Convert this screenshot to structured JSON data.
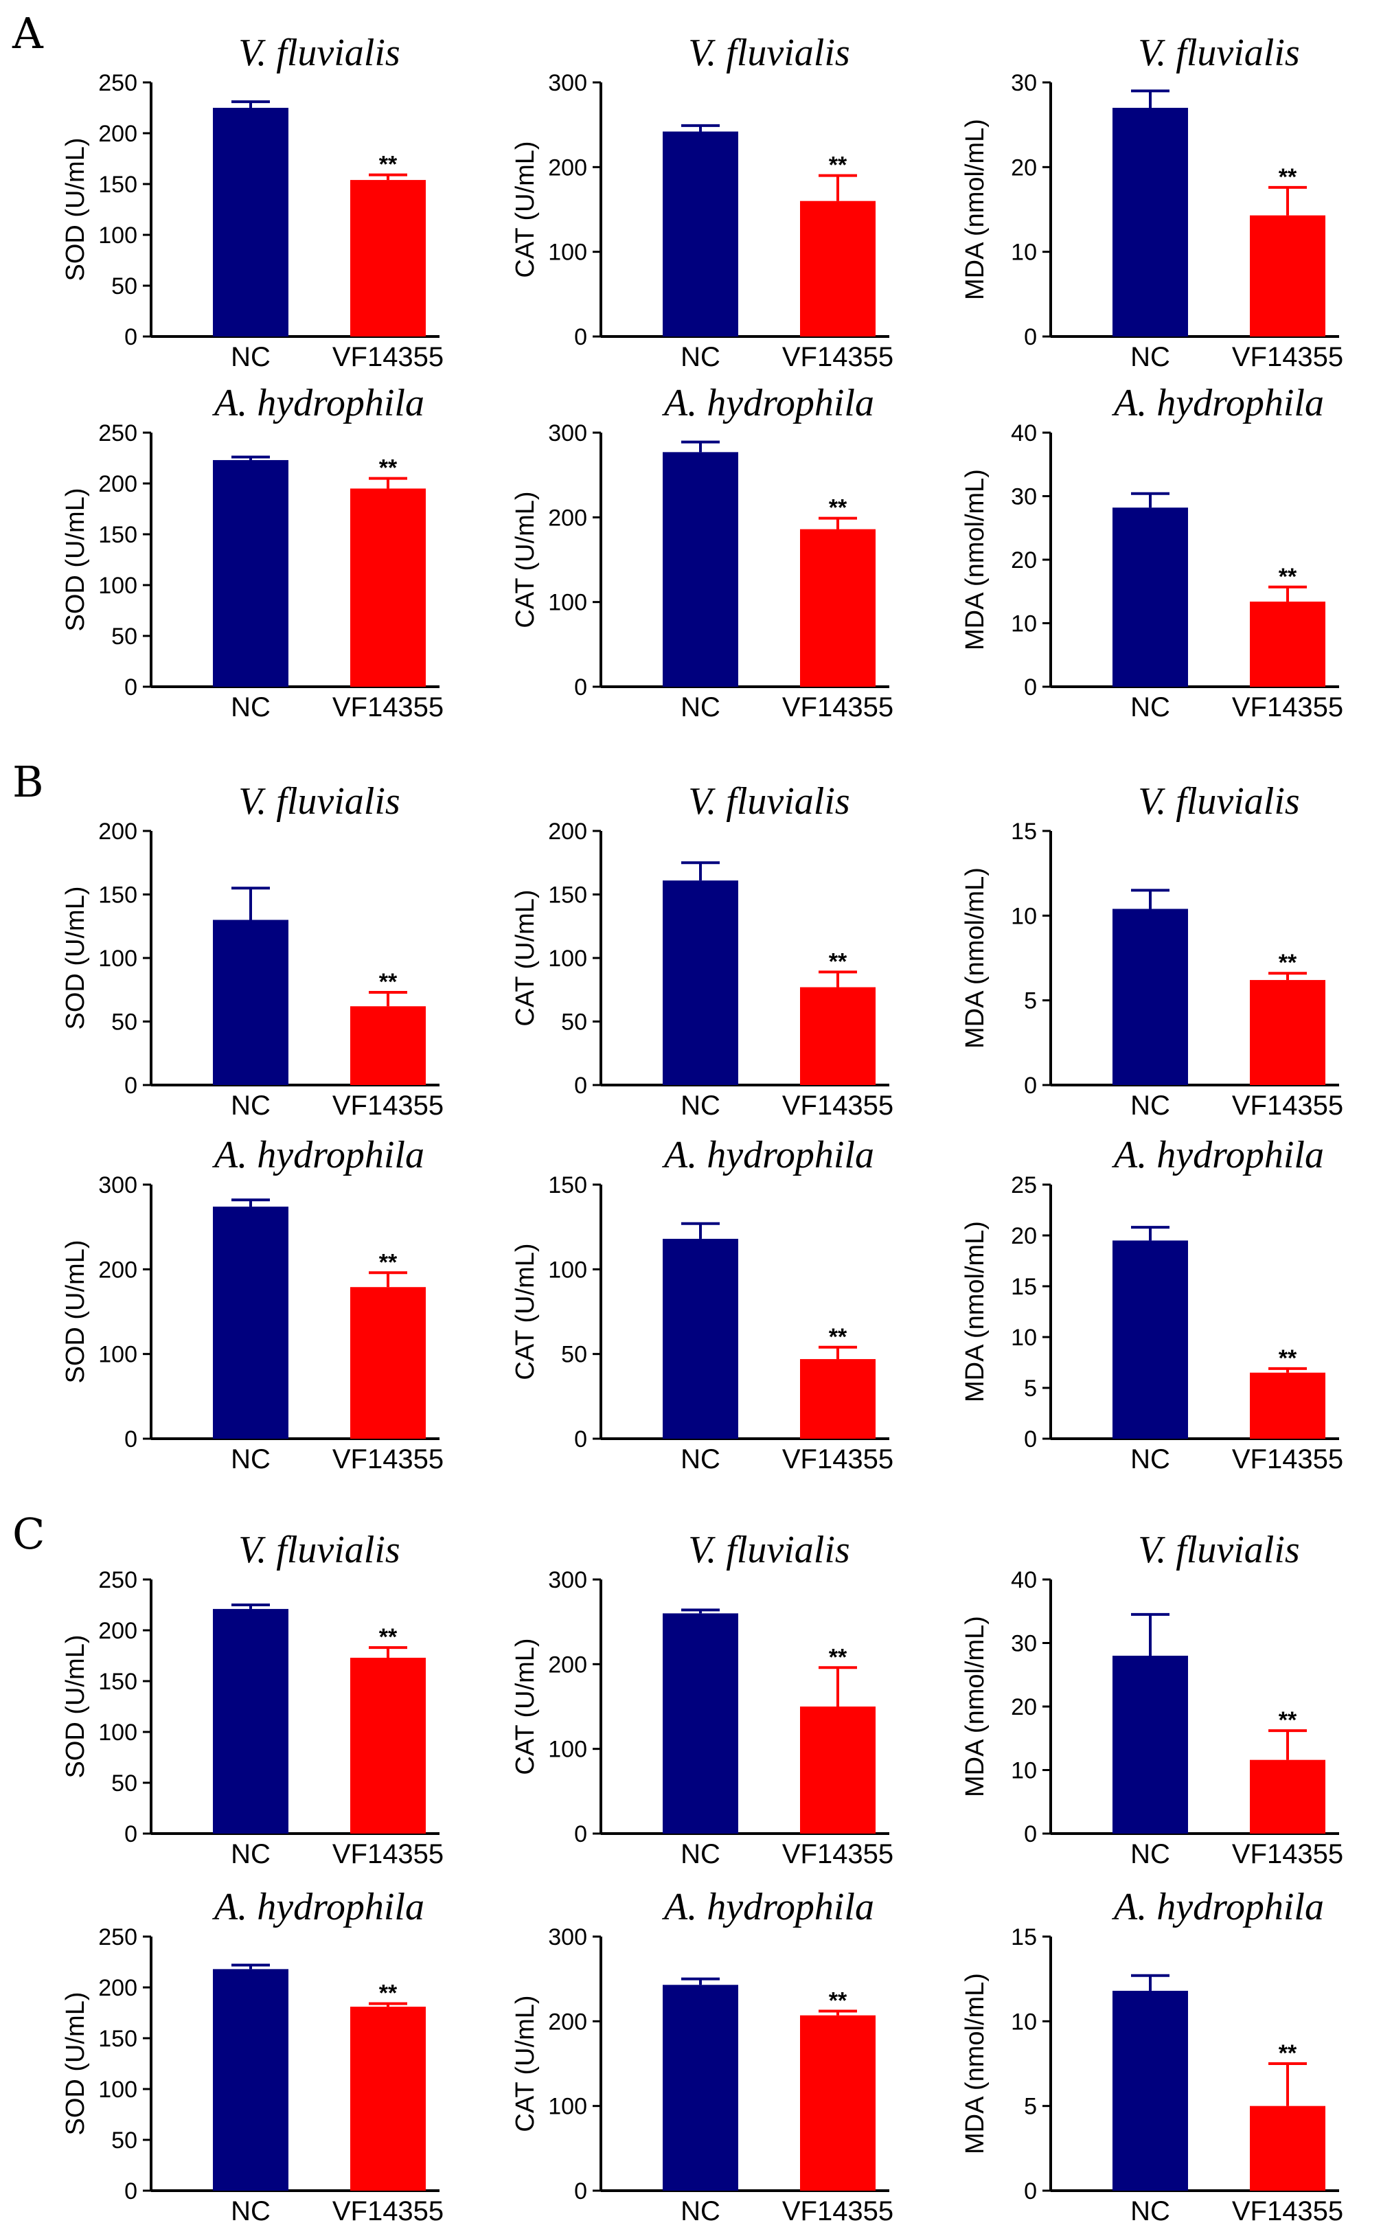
{
  "panel_letters": [
    "A",
    "B",
    "C"
  ],
  "colors": {
    "nc": "#00007E",
    "vf": "#FF0000",
    "axis": "#000000"
  },
  "chart_data": [
    {
      "type": "bar",
      "panel": "A",
      "title": "V. fluvialis",
      "ylabel": "SOD (U/mL)",
      "categories": [
        "NC",
        "VF14355"
      ],
      "values": [
        225,
        154
      ],
      "errors": [
        6,
        5
      ],
      "significance": [
        "",
        "**"
      ],
      "ylim": [
        0,
        250
      ],
      "yticks": [
        0,
        50,
        100,
        150,
        200,
        250
      ]
    },
    {
      "type": "bar",
      "panel": "A",
      "title": "V. fluvialis",
      "ylabel": "CAT (U/mL)",
      "categories": [
        "NC",
        "VF14355"
      ],
      "values": [
        242,
        160
      ],
      "errors": [
        7,
        30
      ],
      "significance": [
        "",
        "**"
      ],
      "ylim": [
        0,
        300
      ],
      "yticks": [
        0,
        100,
        200,
        300
      ]
    },
    {
      "type": "bar",
      "panel": "A",
      "title": "V. fluvialis",
      "ylabel": "MDA (nmol/mL)",
      "categories": [
        "NC",
        "VF14355"
      ],
      "values": [
        27,
        14.3
      ],
      "errors": [
        2,
        3.3
      ],
      "significance": [
        "",
        "**"
      ],
      "ylim": [
        0,
        30
      ],
      "yticks": [
        0,
        10,
        20,
        30
      ]
    },
    {
      "type": "bar",
      "panel": "A",
      "title": "A. hydrophila",
      "ylabel": "SOD (U/mL)",
      "categories": [
        "NC",
        "VF14355"
      ],
      "values": [
        223,
        195
      ],
      "errors": [
        3,
        10
      ],
      "significance": [
        "",
        "**"
      ],
      "ylim": [
        0,
        250
      ],
      "yticks": [
        0,
        50,
        100,
        150,
        200,
        250
      ]
    },
    {
      "type": "bar",
      "panel": "A",
      "title": "A. hydrophila",
      "ylabel": "CAT (U/mL)",
      "categories": [
        "NC",
        "VF14355"
      ],
      "values": [
        277,
        186
      ],
      "errors": [
        12,
        13
      ],
      "significance": [
        "",
        "**"
      ],
      "ylim": [
        0,
        300
      ],
      "yticks": [
        0,
        100,
        200,
        300
      ]
    },
    {
      "type": "bar",
      "panel": "A",
      "title": "A. hydrophila",
      "ylabel": "MDA (nmol/mL)",
      "categories": [
        "NC",
        "VF14355"
      ],
      "values": [
        28.2,
        13.4
      ],
      "errors": [
        2.2,
        2.3
      ],
      "significance": [
        "",
        "**"
      ],
      "ylim": [
        0,
        40
      ],
      "yticks": [
        0,
        10,
        20,
        30,
        40
      ]
    },
    {
      "type": "bar",
      "panel": "B",
      "title": "V. fluvialis",
      "ylabel": "SOD (U/mL)",
      "categories": [
        "NC",
        "VF14355"
      ],
      "values": [
        130,
        62
      ],
      "errors": [
        25,
        11
      ],
      "significance": [
        "",
        "**"
      ],
      "ylim": [
        0,
        200
      ],
      "yticks": [
        0,
        50,
        100,
        150,
        200
      ]
    },
    {
      "type": "bar",
      "panel": "B",
      "title": "V. fluvialis",
      "ylabel": "CAT (U/mL)",
      "categories": [
        "NC",
        "VF14355"
      ],
      "values": [
        161,
        77
      ],
      "errors": [
        14,
        12
      ],
      "significance": [
        "",
        "**"
      ],
      "ylim": [
        0,
        200
      ],
      "yticks": [
        0,
        50,
        100,
        150,
        200
      ]
    },
    {
      "type": "bar",
      "panel": "B",
      "title": "V. fluvialis",
      "ylabel": "MDA (nmol/mL)",
      "categories": [
        "NC",
        "VF14355"
      ],
      "values": [
        10.4,
        6.2
      ],
      "errors": [
        1.1,
        0.4
      ],
      "significance": [
        "",
        "**"
      ],
      "ylim": [
        0,
        15
      ],
      "yticks": [
        0,
        5,
        10,
        15
      ]
    },
    {
      "type": "bar",
      "panel": "B",
      "title": "A. hydrophila",
      "ylabel": "SOD (U/mL)",
      "categories": [
        "NC",
        "VF14355"
      ],
      "values": [
        274,
        179
      ],
      "errors": [
        8,
        17
      ],
      "significance": [
        "",
        "**"
      ],
      "ylim": [
        0,
        300
      ],
      "yticks": [
        0,
        100,
        200,
        300
      ]
    },
    {
      "type": "bar",
      "panel": "B",
      "title": "A. hydrophila",
      "ylabel": "CAT (U/mL)",
      "categories": [
        "NC",
        "VF14355"
      ],
      "values": [
        118,
        47
      ],
      "errors": [
        9,
        7
      ],
      "significance": [
        "",
        "**"
      ],
      "ylim": [
        0,
        150
      ],
      "yticks": [
        0,
        50,
        100,
        150
      ]
    },
    {
      "type": "bar",
      "panel": "B",
      "title": "A. hydrophila",
      "ylabel": "MDA (nmol/mL)",
      "categories": [
        "NC",
        "VF14355"
      ],
      "values": [
        19.5,
        6.5
      ],
      "errors": [
        1.3,
        0.4
      ],
      "significance": [
        "",
        "**"
      ],
      "ylim": [
        0,
        25
      ],
      "yticks": [
        0,
        5,
        10,
        15,
        20,
        25
      ]
    },
    {
      "type": "bar",
      "panel": "C",
      "title": "V. fluvialis",
      "ylabel": "SOD (U/mL)",
      "categories": [
        "NC",
        "VF14355"
      ],
      "values": [
        221,
        173
      ],
      "errors": [
        4,
        10
      ],
      "significance": [
        "",
        "**"
      ],
      "ylim": [
        0,
        250
      ],
      "yticks": [
        0,
        50,
        100,
        150,
        200,
        250
      ]
    },
    {
      "type": "bar",
      "panel": "C",
      "title": "V. fluvialis",
      "ylabel": "CAT (U/mL)",
      "categories": [
        "NC",
        "VF14355"
      ],
      "values": [
        260,
        150
      ],
      "errors": [
        4,
        46
      ],
      "significance": [
        "",
        "**"
      ],
      "ylim": [
        0,
        300
      ],
      "yticks": [
        0,
        100,
        200,
        300
      ]
    },
    {
      "type": "bar",
      "panel": "C",
      "title": "V. fluvialis",
      "ylabel": "MDA (nmol/mL)",
      "categories": [
        "NC",
        "VF14355"
      ],
      "values": [
        28,
        11.6
      ],
      "errors": [
        6.5,
        4.6
      ],
      "significance": [
        "",
        "**"
      ],
      "ylim": [
        0,
        40
      ],
      "yticks": [
        0,
        10,
        20,
        30,
        40
      ]
    },
    {
      "type": "bar",
      "panel": "C",
      "title": "A. hydrophila",
      "ylabel": "SOD (U/mL)",
      "categories": [
        "NC",
        "VF14355"
      ],
      "values": [
        218,
        181
      ],
      "errors": [
        4,
        3
      ],
      "significance": [
        "",
        "**"
      ],
      "ylim": [
        0,
        250
      ],
      "yticks": [
        0,
        50,
        100,
        150,
        200,
        250
      ]
    },
    {
      "type": "bar",
      "panel": "C",
      "title": "A. hydrophila",
      "ylabel": "CAT (U/mL)",
      "categories": [
        "NC",
        "VF14355"
      ],
      "values": [
        243,
        207
      ],
      "errors": [
        7,
        5
      ],
      "significance": [
        "",
        "**"
      ],
      "ylim": [
        0,
        300
      ],
      "yticks": [
        0,
        100,
        200,
        300
      ]
    },
    {
      "type": "bar",
      "panel": "C",
      "title": "A. hydrophila",
      "ylabel": "MDA (nmol/mL)",
      "categories": [
        "NC",
        "VF14355"
      ],
      "values": [
        11.8,
        5
      ],
      "errors": [
        0.9,
        2.5
      ],
      "significance": [
        "",
        "**"
      ],
      "ylim": [
        0,
        15
      ],
      "yticks": [
        0,
        5,
        10,
        15
      ]
    }
  ]
}
